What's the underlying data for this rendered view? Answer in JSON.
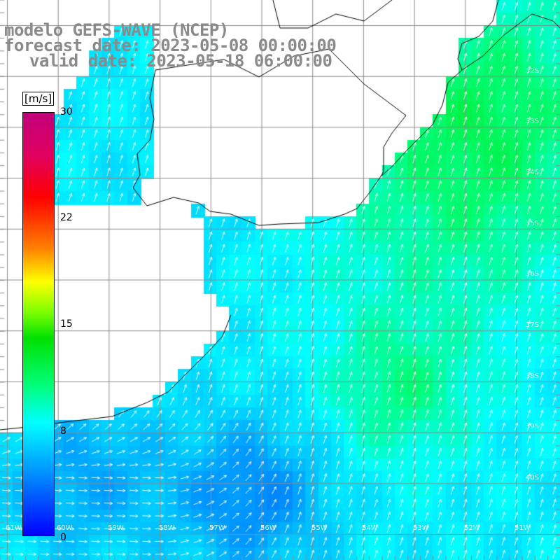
{
  "title": {
    "line1": "modelo GEFS-WAVE (NCEP)",
    "line2": "forecast date: 2023-05-08 00:00:00",
    "line3": "valid date: 2023-05-18 06:00:00"
  },
  "colorbar": {
    "units": "[m/s]",
    "min": 0,
    "max": 30,
    "ticks": [
      "30",
      "22",
      "15",
      "8",
      "0"
    ],
    "tick_values": [
      30,
      22,
      15,
      8,
      0
    ],
    "colors": {
      "low": "#0000ff",
      "mid": "#00ffff",
      "green": "#00e000",
      "yellow": "#ffff00",
      "red": "#ff0000",
      "high": "#c0007a"
    }
  },
  "map": {
    "field": "wind speed",
    "land_color": "#ffffff",
    "grid_color": "#8c8c8c",
    "coast_color": "#000000",
    "lat_labels": [
      "32S",
      "33S",
      "34S",
      "35S",
      "36S",
      "37S",
      "38S",
      "39S",
      "40S"
    ],
    "lon_labels": [
      "61W",
      "60W",
      "59W",
      "58W",
      "57W",
      "56W",
      "55W",
      "54W",
      "53W",
      "52W",
      "51W"
    ]
  }
}
